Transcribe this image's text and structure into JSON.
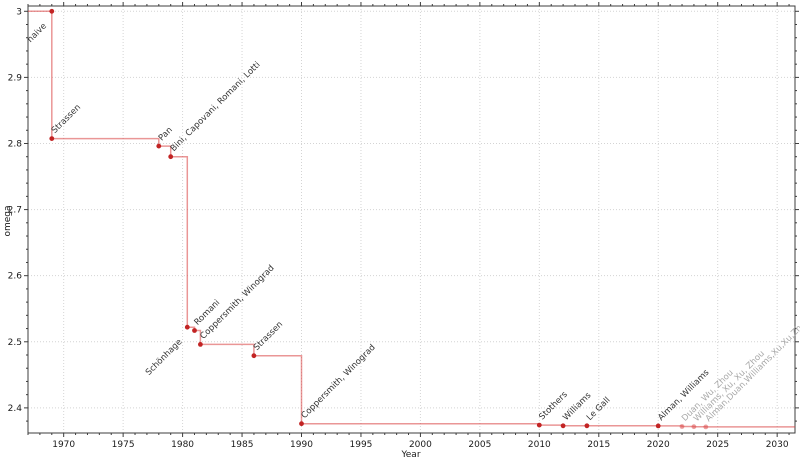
{
  "chart_data": {
    "type": "line",
    "subtype": "step-post",
    "title": "",
    "xlabel": "Year",
    "ylabel": "omega",
    "xlim": [
      1967.0,
      2031.5
    ],
    "ylim": [
      2.362,
      3.008
    ],
    "grid": "dotted-major",
    "legend": "none",
    "x_major_ticks": [
      1970,
      1975,
      1980,
      1985,
      1990,
      1995,
      2000,
      2005,
      2010,
      2015,
      2020,
      2025,
      2030
    ],
    "x_minor_step": 1,
    "y_major_ticks": [
      2.4,
      2.5,
      2.6,
      2.7,
      2.8,
      2.9,
      3.0
    ],
    "y_major_labels": [
      "2.4",
      "2.5",
      "2.6",
      "2.7",
      "2.8",
      "2.9",
      "3"
    ],
    "y_minor_step": 0.02,
    "points": [
      {
        "year": 1969,
        "omega": 3.0,
        "label": "naive",
        "label_side": "below",
        "recent": false
      },
      {
        "year": 1969,
        "omega": 2.8074,
        "label": "Strassen",
        "label_side": "above",
        "recent": false
      },
      {
        "year": 1978,
        "omega": 2.796,
        "label": "Pan",
        "label_side": "above",
        "recent": false
      },
      {
        "year": 1979,
        "omega": 2.78,
        "label": "Bini, Capovani, Romani, Lotti",
        "label_side": "above",
        "recent": false
      },
      {
        "year": 1980.4,
        "omega": 2.522,
        "label": "Schönhage",
        "label_side": "below",
        "recent": false
      },
      {
        "year": 1981,
        "omega": 2.517,
        "label": "Romani",
        "label_side": "above",
        "recent": false
      },
      {
        "year": 1981.5,
        "omega": 2.496,
        "label": "Coppersmith, Winograd",
        "label_side": "above",
        "recent": false
      },
      {
        "year": 1986,
        "omega": 2.479,
        "label": "Strassen",
        "label_side": "above",
        "recent": false
      },
      {
        "year": 1990,
        "omega": 2.376,
        "label": "Coppersmith, Winograd",
        "label_side": "above",
        "recent": false
      },
      {
        "year": 2010,
        "omega": 2.374,
        "label": "Stothers",
        "label_side": "above",
        "recent": false
      },
      {
        "year": 2012,
        "omega": 2.3729,
        "label": "Williams",
        "label_side": "above",
        "recent": false
      },
      {
        "year": 2014,
        "omega": 2.3729,
        "label": "Le Gall",
        "label_side": "above",
        "recent": false
      },
      {
        "year": 2020,
        "omega": 2.3728,
        "label": "Alman, Williams",
        "label_side": "above",
        "recent": false
      },
      {
        "year": 2022,
        "omega": 2.3719,
        "label": "Duan, Wu, Zhou",
        "label_side": "above",
        "recent": true
      },
      {
        "year": 2023,
        "omega": 2.3716,
        "label": "Williams, Xu, Xu, Zhou",
        "label_side": "above",
        "recent": true
      },
      {
        "year": 2024,
        "omega": 2.3713,
        "label": "Alman,Duan,Williams,Xu,Xu,Zhou",
        "label_side": "above",
        "recent": true
      }
    ],
    "colors": {
      "line": "#d84040",
      "line_opacity": 0.55,
      "marker": "#c22424",
      "marker_recent": "#d84040",
      "marker_recent_opacity": 0.5,
      "label_color": "#333333",
      "label_recent_color": "#a8a8a8",
      "grid": "#d4d4d4",
      "axis": "#3c3c3c",
      "tick_label_color": "#1a1a1a"
    }
  }
}
